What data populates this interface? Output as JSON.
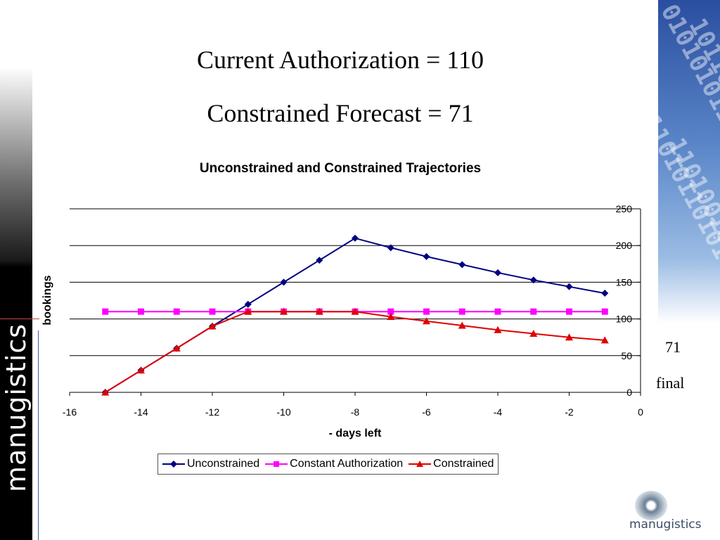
{
  "slide": {
    "title_line1": "Current Authorization = 110",
    "title_line2": "Constrained Forecast = 71",
    "side_note_value": "71",
    "side_note_label": "final",
    "brand": "manugistics",
    "logo_text": "manugistics"
  },
  "chart_data": {
    "type": "line",
    "title": "Unconstrained and Constrained Trajectories",
    "xlabel": "- days left",
    "ylabel": "bookings",
    "xlim": [
      -16,
      0
    ],
    "ylim": [
      0,
      250
    ],
    "x_ticks": [
      -16,
      -14,
      -12,
      -10,
      -8,
      -6,
      -4,
      -2,
      0
    ],
    "y_ticks": [
      0,
      50,
      100,
      150,
      200,
      250
    ],
    "y_axis_position": "right",
    "grid": "horizontal",
    "legend_position": "bottom",
    "x": [
      -15,
      -14,
      -13,
      -12,
      -11,
      -10,
      -9,
      -8,
      -7,
      -6,
      -5,
      -4,
      -3,
      -2,
      -1
    ],
    "series": [
      {
        "name": "Unconstrained",
        "color": "#000080",
        "marker": "diamond",
        "values": [
          0,
          30,
          60,
          90,
          120,
          150,
          180,
          210,
          197,
          185,
          174,
          163,
          153,
          144,
          135
        ]
      },
      {
        "name": "Constant Authorization",
        "color": "#ff00ff",
        "marker": "square",
        "values": [
          110,
          110,
          110,
          110,
          110,
          110,
          110,
          110,
          110,
          110,
          110,
          110,
          110,
          110,
          110
        ]
      },
      {
        "name": "Constrained",
        "color": "#e00000",
        "marker": "triangle",
        "values": [
          0,
          30,
          60,
          90,
          110,
          110,
          110,
          110,
          103,
          97,
          91,
          85,
          80,
          75,
          71
        ]
      }
    ]
  }
}
